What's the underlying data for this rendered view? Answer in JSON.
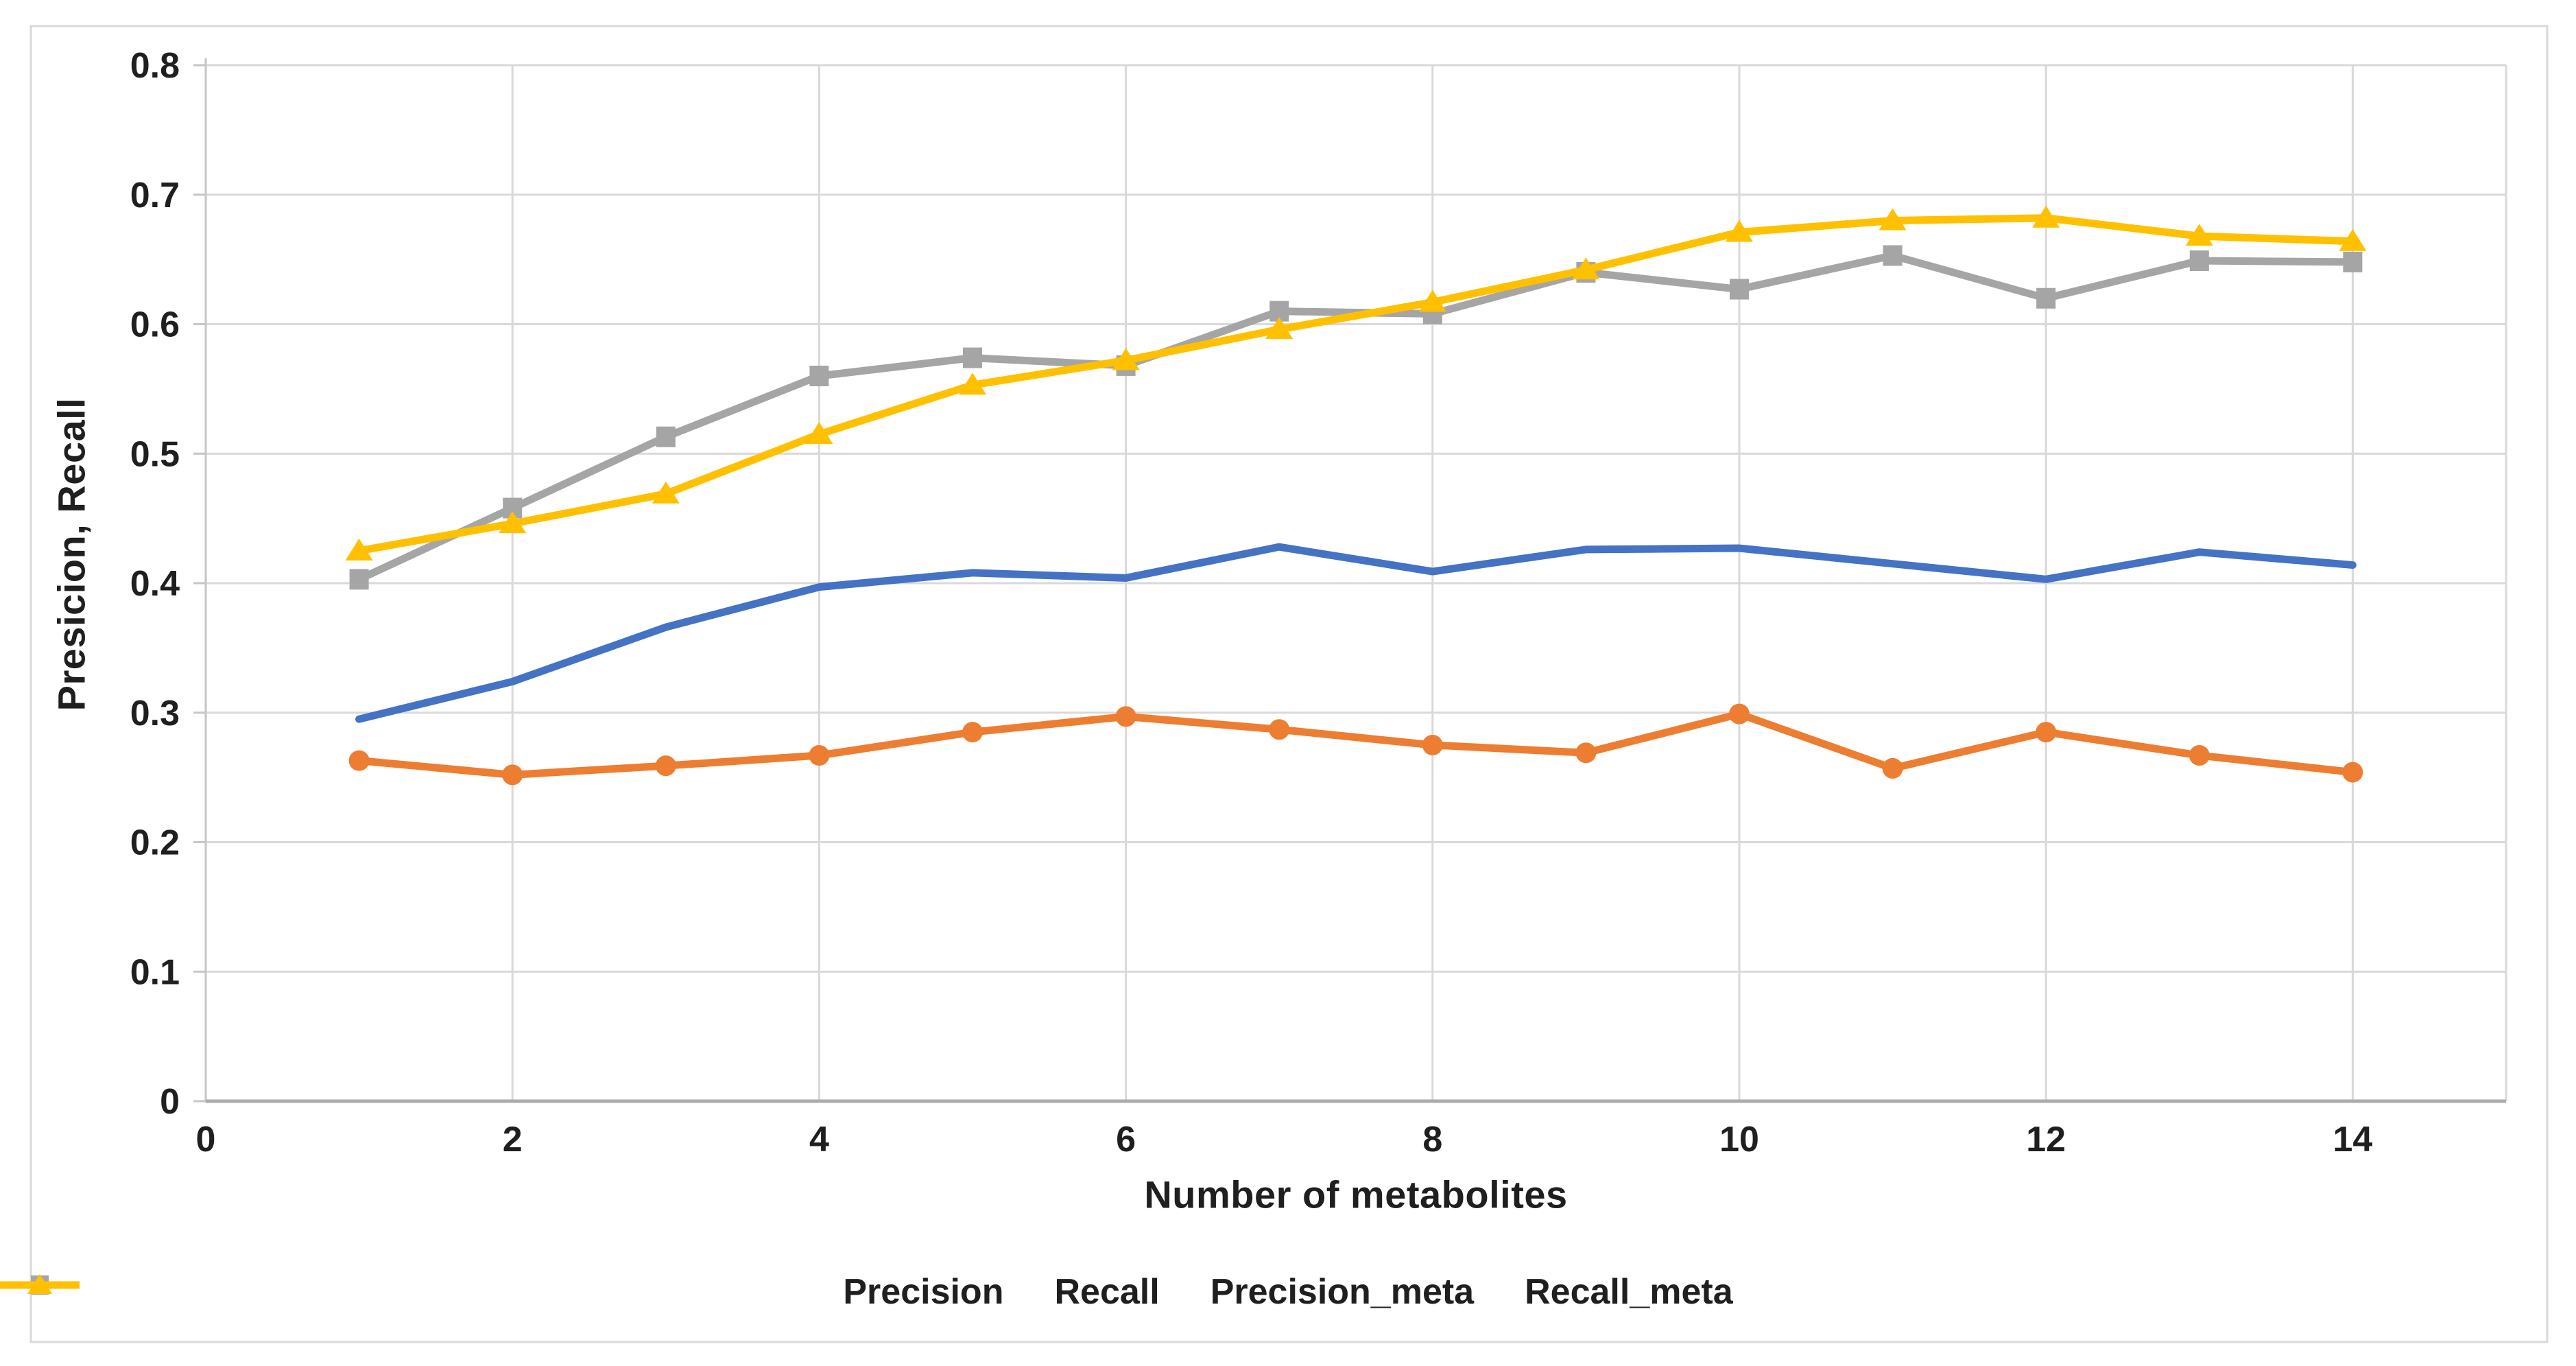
{
  "chart_data": {
    "type": "line",
    "title": "",
    "xlabel": "Number of metabolites",
    "ylabel": "Presicion, Recall",
    "x": [
      1,
      2,
      3,
      4,
      5,
      6,
      7,
      8,
      9,
      10,
      11,
      12,
      13,
      14
    ],
    "xlim": [
      0,
      15
    ],
    "ylim": [
      0,
      0.8
    ],
    "x_ticks": [
      0,
      2,
      4,
      6,
      8,
      10,
      12,
      14
    ],
    "x_tick_labels": [
      "0",
      "2",
      "4",
      "6",
      "8",
      "10",
      "12",
      "14"
    ],
    "y_ticks": [
      0,
      0.1,
      0.2,
      0.3,
      0.4,
      0.5,
      0.6,
      0.7,
      0.8
    ],
    "y_tick_labels": [
      "0",
      "0.1",
      "0.2",
      "0.3",
      "0.4",
      "0.5",
      "0.6",
      "0.7",
      "0.8"
    ],
    "grid": true,
    "legend_position": "bottom",
    "series": [
      {
        "name": "Precision",
        "color": "#4472C4",
        "marker": "none",
        "values": [
          0.295,
          0.324,
          0.366,
          0.397,
          0.408,
          0.404,
          0.428,
          0.409,
          0.426,
          0.427,
          0.415,
          0.403,
          0.424,
          0.414
        ]
      },
      {
        "name": "Recall",
        "color": "#ED7D31",
        "marker": "circle",
        "values": [
          0.263,
          0.252,
          0.259,
          0.267,
          0.285,
          0.297,
          0.287,
          0.275,
          0.269,
          0.299,
          0.257,
          0.285,
          0.267,
          0.254
        ]
      },
      {
        "name": "Precision_meta",
        "color": "#A5A5A5",
        "marker": "square",
        "values": [
          0.403,
          0.458,
          0.513,
          0.56,
          0.574,
          0.568,
          0.61,
          0.608,
          0.64,
          0.627,
          0.653,
          0.62,
          0.649,
          0.648
        ]
      },
      {
        "name": "Recall_meta",
        "color": "#FFC000",
        "marker": "triangle",
        "values": [
          0.425,
          0.446,
          0.469,
          0.515,
          0.553,
          0.572,
          0.596,
          0.617,
          0.642,
          0.671,
          0.68,
          0.682,
          0.668,
          0.664
        ]
      }
    ]
  },
  "colors": {
    "background": "#FFFFFF",
    "chart_border": "#D9D9D9",
    "gridline": "#D9D9D9",
    "axis_line": "#ABABAB",
    "text": "#1F1F1F",
    "series_blue": "#4472C4",
    "series_orange": "#ED7D31",
    "series_gray": "#A5A5A5",
    "series_gold": "#FFC000"
  }
}
